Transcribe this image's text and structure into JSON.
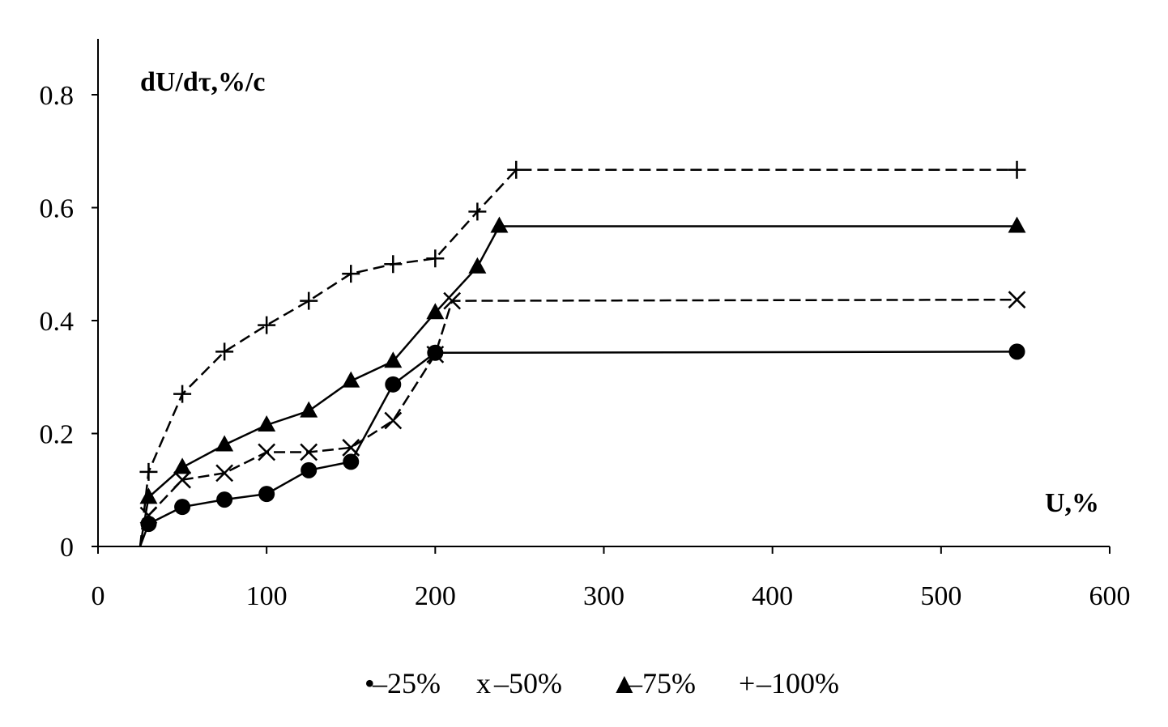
{
  "chart_data": {
    "type": "line",
    "title": "",
    "ylabel": "dU/dτ,%/c",
    "xlabel": "U,%",
    "xlim": [
      0,
      600
    ],
    "ylim": [
      0,
      0.8
    ],
    "x_ticks": [
      0,
      100,
      200,
      300,
      400,
      500,
      600
    ],
    "y_ticks": [
      0,
      0.2,
      0.4,
      0.6,
      0.8
    ],
    "x_tick_labels": [
      "0",
      "100",
      "200",
      "300",
      "400",
      "500",
      "600"
    ],
    "y_tick_labels": [
      "0",
      "0.2",
      "0.4",
      "0.6",
      "0.8"
    ],
    "grid": false,
    "legend_position": "bottom",
    "series": [
      {
        "name": "–25%",
        "marker": "circle",
        "points": [
          [
            25,
            0
          ],
          [
            30,
            0.04
          ],
          [
            50,
            0.07
          ],
          [
            75,
            0.083
          ],
          [
            100,
            0.093
          ],
          [
            125,
            0.135
          ],
          [
            150,
            0.15
          ],
          [
            175,
            0.287
          ],
          [
            200,
            0.343
          ],
          [
            545,
            0.345
          ]
        ]
      },
      {
        "name": "–50%",
        "marker": "x",
        "points": [
          [
            25,
            0
          ],
          [
            30,
            0.055
          ],
          [
            50,
            0.118
          ],
          [
            75,
            0.13
          ],
          [
            100,
            0.167
          ],
          [
            125,
            0.167
          ],
          [
            150,
            0.175
          ],
          [
            175,
            0.223
          ],
          [
            200,
            0.34
          ],
          [
            210,
            0.435
          ],
          [
            545,
            0.437
          ]
        ]
      },
      {
        "name": "–75%",
        "marker": "triangle",
        "points": [
          [
            25,
            0
          ],
          [
            30,
            0.087
          ],
          [
            50,
            0.14
          ],
          [
            75,
            0.18
          ],
          [
            100,
            0.215
          ],
          [
            125,
            0.24
          ],
          [
            150,
            0.293
          ],
          [
            175,
            0.328
          ],
          [
            200,
            0.414
          ],
          [
            225,
            0.495
          ],
          [
            238,
            0.567
          ],
          [
            545,
            0.567
          ]
        ]
      },
      {
        "name": "–100%",
        "marker": "plus",
        "points": [
          [
            25,
            0
          ],
          [
            30,
            0.132
          ],
          [
            50,
            0.27
          ],
          [
            75,
            0.345
          ],
          [
            100,
            0.392
          ],
          [
            125,
            0.435
          ],
          [
            150,
            0.483
          ],
          [
            175,
            0.5
          ],
          [
            200,
            0.51
          ],
          [
            225,
            0.593
          ],
          [
            248,
            0.667
          ],
          [
            545,
            0.667
          ]
        ]
      }
    ],
    "legend": [
      {
        "symbol": "•",
        "label": "–25%"
      },
      {
        "symbol": "x",
        "label": "–50%"
      },
      {
        "symbol": "▲",
        "label": "–75%"
      },
      {
        "symbol": "+",
        "label": "–100%"
      }
    ]
  }
}
